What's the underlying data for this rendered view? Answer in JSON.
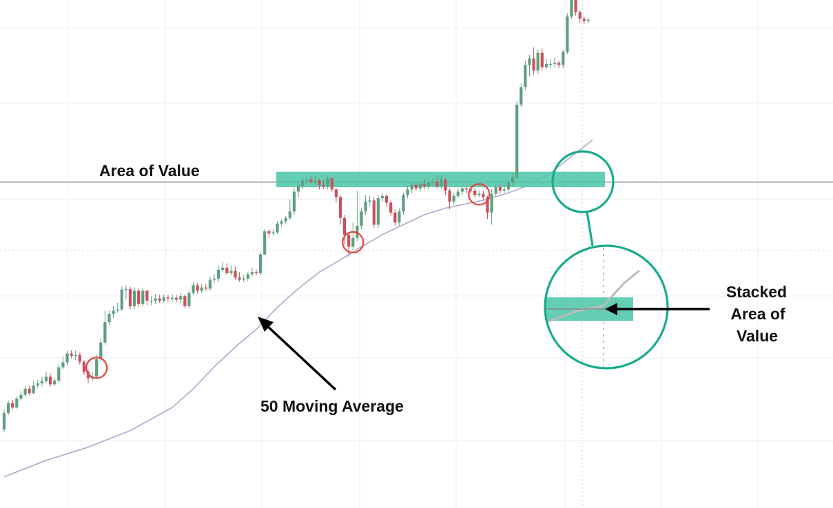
{
  "annotations": {
    "area_of_value": "Area of Value",
    "moving_average": "50 Moving Average",
    "stacked_lines": [
      "Stacked",
      "Area of",
      "Value"
    ]
  },
  "colors": {
    "bullish": "#5f9e7e",
    "bearish": "#c9505a",
    "zone": "#4fc7aa",
    "zoom_circle": "#17ab8c",
    "touch_circle": "#e5423b",
    "ma_line": "#a9a9cf",
    "level_line": "#8c8c8c",
    "grid": "#efefef"
  },
  "chart_data": {
    "type": "candlestick",
    "title": "",
    "xlabel": "",
    "ylabel": "",
    "grid": true,
    "moving_average_period": 50,
    "candles": [
      [
        47.0,
        50.0,
        46.5,
        50.5
      ],
      [
        50.0,
        51.8,
        49.6,
        52.3
      ],
      [
        51.8,
        51.0,
        50.6,
        52.4
      ],
      [
        51.0,
        52.6,
        50.8,
        53.0
      ],
      [
        52.6,
        53.3,
        52.2,
        54.1
      ],
      [
        53.3,
        54.4,
        53.0,
        54.9
      ],
      [
        54.4,
        53.6,
        53.2,
        55.0
      ],
      [
        53.6,
        55.0,
        53.4,
        55.8
      ],
      [
        55.0,
        55.4,
        54.6,
        56.0
      ],
      [
        55.4,
        55.8,
        54.8,
        56.6
      ],
      [
        55.8,
        56.6,
        55.4,
        57.4
      ],
      [
        56.6,
        55.2,
        54.8,
        57.2
      ],
      [
        55.2,
        55.9,
        54.9,
        56.4
      ],
      [
        55.9,
        58.3,
        55.6,
        59.0
      ],
      [
        58.3,
        59.2,
        57.9,
        60.3
      ],
      [
        59.2,
        60.8,
        58.6,
        61.3
      ],
      [
        60.8,
        60.4,
        59.9,
        61.4
      ],
      [
        60.4,
        60.5,
        59.6,
        61.4
      ],
      [
        60.5,
        59.3,
        58.8,
        61.0
      ],
      [
        59.3,
        57.5,
        56.9,
        59.6
      ],
      [
        57.5,
        56.3,
        55.4,
        57.9
      ],
      [
        56.3,
        56.6,
        55.8,
        57.4
      ],
      [
        56.6,
        59.8,
        56.3,
        60.6
      ],
      [
        59.8,
        62.8,
        59.4,
        63.6
      ],
      [
        62.8,
        66.5,
        62.4,
        68.6
      ],
      [
        66.5,
        68.0,
        65.9,
        68.6
      ],
      [
        68.0,
        68.6,
        67.2,
        69.4
      ],
      [
        68.6,
        68.8,
        68.2,
        70.0
      ],
      [
        68.8,
        72.4,
        68.6,
        73.0
      ],
      [
        72.4,
        72.5,
        70.6,
        73.2
      ],
      [
        72.5,
        69.4,
        68.8,
        72.9
      ],
      [
        69.4,
        72.2,
        68.8,
        72.8
      ],
      [
        72.2,
        69.8,
        69.2,
        72.6
      ],
      [
        69.8,
        72.2,
        69.4,
        72.8
      ],
      [
        72.2,
        70.4,
        69.6,
        72.4
      ],
      [
        70.4,
        70.4,
        69.6,
        71.3
      ],
      [
        70.4,
        70.8,
        69.8,
        71.6
      ],
      [
        70.8,
        70.4,
        70.0,
        71.5
      ],
      [
        70.4,
        71.0,
        70.0,
        71.6
      ],
      [
        71.0,
        70.8,
        70.2,
        71.5
      ],
      [
        70.8,
        70.9,
        70.2,
        71.6
      ],
      [
        70.9,
        70.6,
        70.1,
        71.4
      ],
      [
        70.6,
        71.2,
        69.9,
        71.8
      ],
      [
        71.2,
        69.4,
        69.0,
        71.6
      ],
      [
        69.4,
        71.8,
        69.0,
        72.4
      ],
      [
        71.8,
        73.2,
        71.4,
        73.8
      ],
      [
        73.2,
        72.2,
        71.6,
        73.6
      ],
      [
        72.2,
        72.8,
        71.8,
        73.4
      ],
      [
        72.8,
        72.6,
        72.2,
        73.4
      ],
      [
        72.6,
        74.2,
        72.2,
        74.8
      ],
      [
        74.2,
        74.4,
        73.6,
        75.2
      ],
      [
        74.4,
        76.0,
        73.8,
        76.8
      ],
      [
        76.0,
        76.4,
        75.6,
        77.4
      ],
      [
        76.4,
        75.4,
        75.0,
        77.2
      ],
      [
        75.4,
        75.8,
        75.0,
        76.8
      ],
      [
        75.8,
        74.6,
        74.2,
        76.6
      ],
      [
        74.6,
        74.2,
        73.8,
        75.6
      ],
      [
        74.2,
        74.4,
        73.8,
        75.0
      ],
      [
        74.4,
        75.2,
        74.0,
        75.6
      ],
      [
        75.2,
        75.6,
        74.8,
        76.4
      ],
      [
        75.6,
        75.4,
        75.0,
        76.1
      ],
      [
        75.4,
        78.8,
        75.0,
        79.2
      ],
      [
        78.8,
        83.0,
        78.6,
        83.4
      ],
      [
        83.0,
        82.6,
        81.8,
        83.4
      ],
      [
        82.6,
        82.8,
        82.2,
        83.4
      ],
      [
        82.8,
        84.4,
        82.5,
        84.8
      ],
      [
        84.4,
        84.8,
        83.8,
        85.2
      ],
      [
        84.8,
        85.4,
        84.4,
        85.8
      ],
      [
        85.4,
        86.6,
        85.0,
        88.8
      ],
      [
        86.6,
        90.2,
        86.0,
        90.8
      ],
      [
        90.2,
        91.2,
        89.2,
        91.8
      ],
      [
        91.2,
        92.2,
        90.6,
        92.8
      ],
      [
        92.2,
        92.4,
        91.6,
        92.8
      ],
      [
        92.4,
        92.0,
        91.6,
        93.0
      ],
      [
        92.0,
        92.2,
        91.6,
        93.0
      ],
      [
        92.2,
        91.4,
        90.6,
        92.6
      ],
      [
        91.4,
        91.2,
        90.6,
        92.4
      ],
      [
        91.2,
        92.6,
        90.6,
        93.2
      ],
      [
        92.6,
        90.6,
        90.2,
        92.8
      ],
      [
        90.6,
        89.2,
        88.2,
        90.8
      ],
      [
        89.2,
        85.4,
        84.2,
        89.6
      ],
      [
        85.4,
        82.4,
        80.6,
        86.0
      ],
      [
        82.4,
        80.2,
        78.4,
        82.8
      ],
      [
        80.2,
        81.8,
        79.6,
        84.6
      ],
      [
        81.8,
        84.0,
        81.2,
        90.4
      ],
      [
        84.0,
        86.6,
        83.4,
        87.2
      ],
      [
        86.6,
        88.4,
        86.0,
        89.6
      ],
      [
        88.4,
        88.6,
        87.6,
        89.4
      ],
      [
        88.6,
        84.2,
        83.6,
        89.2
      ],
      [
        84.2,
        89.0,
        83.6,
        89.6
      ],
      [
        89.0,
        89.4,
        88.4,
        90.0
      ],
      [
        89.4,
        88.2,
        87.4,
        89.8
      ],
      [
        88.2,
        86.4,
        85.8,
        88.6
      ],
      [
        86.4,
        84.6,
        84.0,
        87.0
      ],
      [
        84.6,
        86.6,
        84.0,
        87.2
      ],
      [
        86.6,
        89.6,
        86.0,
        90.0
      ],
      [
        89.6,
        90.6,
        89.0,
        91.2
      ],
      [
        90.6,
        91.4,
        90.0,
        92.0
      ],
      [
        91.4,
        90.8,
        90.4,
        91.8
      ],
      [
        90.8,
        91.6,
        90.2,
        92.0
      ],
      [
        91.6,
        91.2,
        90.6,
        92.4
      ],
      [
        91.2,
        91.8,
        90.6,
        92.4
      ],
      [
        91.8,
        92.0,
        91.2,
        92.6
      ],
      [
        92.0,
        91.2,
        90.8,
        93.2
      ],
      [
        91.2,
        92.4,
        90.6,
        93.2
      ],
      [
        92.4,
        90.4,
        89.6,
        92.6
      ],
      [
        90.4,
        88.4,
        87.0,
        90.8
      ],
      [
        88.4,
        89.4,
        87.8,
        90.0
      ],
      [
        89.4,
        90.2,
        89.0,
        90.8
      ],
      [
        90.2,
        90.8,
        89.6,
        91.4
      ],
      [
        90.8,
        90.6,
        90.0,
        91.2
      ],
      [
        90.6,
        90.4,
        89.8,
        91.0
      ],
      [
        90.4,
        89.6,
        89.2,
        90.8
      ],
      [
        89.6,
        89.8,
        89.2,
        90.4
      ],
      [
        89.8,
        89.2,
        88.6,
        90.4
      ],
      [
        89.2,
        86.4,
        85.2,
        89.4
      ],
      [
        86.4,
        89.8,
        84.2,
        90.6
      ],
      [
        89.8,
        91.0,
        89.4,
        91.6
      ],
      [
        91.0,
        90.4,
        89.8,
        91.6
      ],
      [
        90.4,
        90.6,
        90.0,
        91.4
      ],
      [
        90.6,
        91.8,
        90.2,
        92.2
      ],
      [
        91.8,
        92.8,
        91.2,
        93.6
      ],
      [
        92.8,
        106.0,
        92.4,
        106.6
      ],
      [
        106.0,
        109.2,
        105.6,
        109.8
      ],
      [
        109.2,
        113.2,
        108.6,
        114.0
      ],
      [
        113.2,
        114.4,
        111.2,
        115.0
      ],
      [
        114.4,
        112.2,
        111.4,
        116.4
      ],
      [
        112.2,
        115.4,
        111.6,
        116.0
      ],
      [
        115.4,
        112.8,
        112.2,
        116.2
      ],
      [
        112.8,
        113.4,
        112.4,
        114.4
      ],
      [
        113.4,
        113.4,
        112.6,
        114.2
      ],
      [
        113.4,
        113.6,
        112.8,
        114.6
      ],
      [
        113.6,
        113.2,
        112.6,
        114.0
      ],
      [
        113.2,
        115.6,
        112.6,
        116.0
      ],
      [
        115.6,
        122.0,
        115.2,
        122.6
      ],
      [
        122.0,
        126.6,
        121.6,
        127.2
      ],
      [
        126.6,
        122.8,
        122.2,
        127.0
      ],
      [
        122.8,
        121.6,
        120.8,
        123.2
      ],
      [
        121.6,
        121.2,
        120.6,
        122.0
      ],
      [
        121.2,
        121.4,
        120.8,
        121.8
      ]
    ],
    "moving_average": [
      [
        0,
        38.4
      ],
      [
        10,
        41.4
      ],
      [
        20,
        43.8
      ],
      [
        30,
        46.8
      ],
      [
        40,
        51.0
      ],
      [
        45,
        54.4
      ],
      [
        50,
        58.4
      ],
      [
        55,
        62.0
      ],
      [
        60,
        65.2
      ],
      [
        65,
        69.2
      ],
      [
        70,
        72.6
      ],
      [
        75,
        75.6
      ],
      [
        80,
        77.8
      ],
      [
        85,
        80.2
      ],
      [
        90,
        82.4
      ],
      [
        95,
        84.2
      ],
      [
        100,
        86.0
      ],
      [
        105,
        87.2
      ],
      [
        110,
        88.0
      ],
      [
        115,
        88.8
      ],
      [
        120,
        90.0
      ],
      [
        125,
        91.4
      ],
      [
        130,
        93.6
      ],
      [
        135,
        96.6
      ],
      [
        137,
        97.8
      ],
      [
        140,
        99.6
      ]
    ],
    "area_of_value_zone": [
      91.0,
      93.8
    ],
    "support_level": 92.0,
    "ma_touches": [
      22,
      83,
      113
    ]
  }
}
